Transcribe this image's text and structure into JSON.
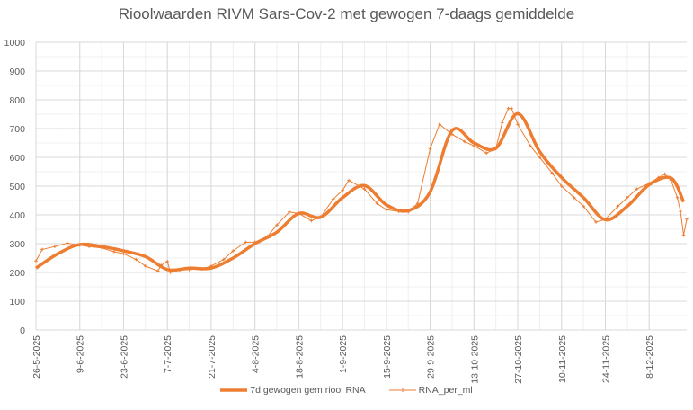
{
  "chart_data": {
    "type": "line",
    "title": "Rioolwaarden RIVM Sars-Cov-2 met gewogen 7-daags gemiddelde",
    "xlabel": "",
    "ylabel": "",
    "ylim": [
      0,
      1000
    ],
    "yticks": [
      0,
      100,
      200,
      300,
      400,
      500,
      600,
      700,
      800,
      900,
      1000
    ],
    "xlim": [
      "2025-05-26",
      "2025-12-20"
    ],
    "xtick_labels": [
      "26-5-2025",
      "9-6-2025",
      "23-6-2025",
      "7-7-2025",
      "21-7-2025",
      "4-8-2025",
      "18-8-2025",
      "1-9-2025",
      "15-9-2025",
      "29-9-2025",
      "13-10-2025",
      "27-10-2025",
      "10-11-2025",
      "24-11-2025",
      "8-12-2025"
    ],
    "grid": true,
    "legend": "bottom",
    "color": "#ED7D31",
    "series": [
      {
        "name": "7d gewogen gem riool RNA",
        "style": "thick-line",
        "points": [
          [
            "2025-05-26",
            215
          ],
          [
            "2025-06-02",
            265
          ],
          [
            "2025-06-09",
            297
          ],
          [
            "2025-06-16",
            290
          ],
          [
            "2025-06-23",
            275
          ],
          [
            "2025-06-30",
            255
          ],
          [
            "2025-07-07",
            210
          ],
          [
            "2025-07-14",
            215
          ],
          [
            "2025-07-21",
            215
          ],
          [
            "2025-07-28",
            250
          ],
          [
            "2025-08-04",
            300
          ],
          [
            "2025-08-11",
            340
          ],
          [
            "2025-08-18",
            405
          ],
          [
            "2025-08-25",
            392
          ],
          [
            "2025-09-01",
            460
          ],
          [
            "2025-09-08",
            502
          ],
          [
            "2025-09-15",
            435
          ],
          [
            "2025-09-22",
            415
          ],
          [
            "2025-09-29",
            480
          ],
          [
            "2025-10-06",
            693
          ],
          [
            "2025-10-13",
            650
          ],
          [
            "2025-10-20",
            632
          ],
          [
            "2025-10-27",
            752
          ],
          [
            "2025-11-03",
            620
          ],
          [
            "2025-11-10",
            530
          ],
          [
            "2025-11-17",
            460
          ],
          [
            "2025-11-24",
            383
          ],
          [
            "2025-12-01",
            430
          ],
          [
            "2025-12-08",
            505
          ],
          [
            "2025-12-15",
            528
          ],
          [
            "2025-12-19",
            445
          ]
        ]
      },
      {
        "name": "RNA_per_ml",
        "style": "thin-line-markers",
        "points": [
          [
            "2025-05-26",
            240
          ],
          [
            "2025-05-28",
            280
          ],
          [
            "2025-06-01",
            290
          ],
          [
            "2025-06-05",
            302
          ],
          [
            "2025-06-09",
            295
          ],
          [
            "2025-06-12",
            290
          ],
          [
            "2025-06-16",
            285
          ],
          [
            "2025-06-20",
            272
          ],
          [
            "2025-06-23",
            265
          ],
          [
            "2025-06-27",
            245
          ],
          [
            "2025-06-30",
            222
          ],
          [
            "2025-07-04",
            205
          ],
          [
            "2025-07-05",
            225
          ],
          [
            "2025-07-07",
            238
          ],
          [
            "2025-07-08",
            200
          ],
          [
            "2025-07-11",
            208
          ],
          [
            "2025-07-14",
            210
          ],
          [
            "2025-07-18",
            212
          ],
          [
            "2025-07-21",
            222
          ],
          [
            "2025-07-25",
            245
          ],
          [
            "2025-07-28",
            275
          ],
          [
            "2025-08-01",
            305
          ],
          [
            "2025-08-04",
            305
          ],
          [
            "2025-08-08",
            325
          ],
          [
            "2025-08-11",
            365
          ],
          [
            "2025-08-15",
            410
          ],
          [
            "2025-08-18",
            405
          ],
          [
            "2025-08-22",
            380
          ],
          [
            "2025-08-25",
            392
          ],
          [
            "2025-08-29",
            455
          ],
          [
            "2025-09-01",
            485
          ],
          [
            "2025-09-03",
            520
          ],
          [
            "2025-09-08",
            490
          ],
          [
            "2025-09-12",
            440
          ],
          [
            "2025-09-15",
            418
          ],
          [
            "2025-09-19",
            412
          ],
          [
            "2025-09-22",
            410
          ],
          [
            "2025-09-25",
            440
          ],
          [
            "2025-09-29",
            630
          ],
          [
            "2025-10-02",
            715
          ],
          [
            "2025-10-06",
            680
          ],
          [
            "2025-10-10",
            655
          ],
          [
            "2025-10-13",
            640
          ],
          [
            "2025-10-17",
            615
          ],
          [
            "2025-10-20",
            630
          ],
          [
            "2025-10-22",
            720
          ],
          [
            "2025-10-24",
            770
          ],
          [
            "2025-10-25",
            770
          ],
          [
            "2025-10-27",
            715
          ],
          [
            "2025-10-31",
            640
          ],
          [
            "2025-11-03",
            600
          ],
          [
            "2025-11-07",
            545
          ],
          [
            "2025-11-10",
            500
          ],
          [
            "2025-11-14",
            460
          ],
          [
            "2025-11-17",
            430
          ],
          [
            "2025-11-21",
            375
          ],
          [
            "2025-11-24",
            385
          ],
          [
            "2025-11-28",
            430
          ],
          [
            "2025-12-01",
            460
          ],
          [
            "2025-12-04",
            490
          ],
          [
            "2025-12-08",
            510
          ],
          [
            "2025-12-11",
            530
          ],
          [
            "2025-12-13",
            542
          ],
          [
            "2025-12-15",
            520
          ],
          [
            "2025-12-17",
            460
          ],
          [
            "2025-12-18",
            412
          ],
          [
            "2025-12-19",
            330
          ],
          [
            "2025-12-20",
            385
          ]
        ]
      }
    ]
  }
}
